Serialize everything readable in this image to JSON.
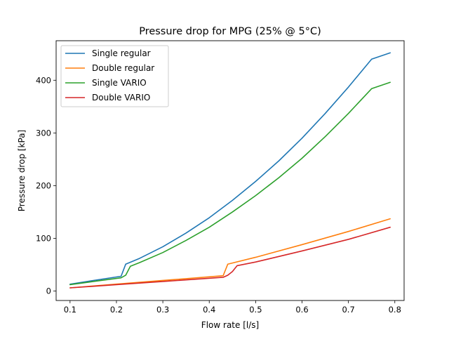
{
  "chart_data": {
    "type": "line",
    "title": "Pressure drop for MPG (25% @ 5°C)",
    "xlabel": "Flow rate [l/s]",
    "ylabel": "Pressure drop [kPa]",
    "xlim": [
      0.07,
      0.82
    ],
    "ylim": [
      -18,
      475
    ],
    "xticks": [
      0.1,
      0.2,
      0.3,
      0.4,
      0.5,
      0.6,
      0.7,
      0.8
    ],
    "xtick_labels": [
      "0.1",
      "0.2",
      "0.3",
      "0.4",
      "0.5",
      "0.6",
      "0.7",
      "0.8"
    ],
    "yticks": [
      0,
      100,
      200,
      300,
      400
    ],
    "ytick_labels": [
      "0",
      "100",
      "200",
      "300",
      "400"
    ],
    "grid": false,
    "legend_position": "top-left",
    "series": [
      {
        "name": "Single regular",
        "color": "#1f77b4",
        "x": [
          0.1,
          0.15,
          0.21,
          0.22,
          0.25,
          0.3,
          0.35,
          0.4,
          0.45,
          0.5,
          0.55,
          0.6,
          0.65,
          0.7,
          0.75,
          0.79
        ],
        "y": [
          13,
          20,
          28,
          51,
          62,
          84,
          110,
          139,
          172,
          208,
          247,
          290,
          337,
          387,
          440,
          452
        ]
      },
      {
        "name": "Double regular",
        "color": "#ff7f0e",
        "x": [
          0.1,
          0.2,
          0.3,
          0.43,
          0.44,
          0.5,
          0.6,
          0.7,
          0.79
        ],
        "y": [
          6,
          13,
          20,
          29,
          51,
          64,
          88,
          113,
          137
        ]
      },
      {
        "name": "Single VARIO",
        "color": "#2ca02c",
        "x": [
          0.1,
          0.15,
          0.21,
          0.22,
          0.23,
          0.25,
          0.3,
          0.35,
          0.4,
          0.45,
          0.5,
          0.55,
          0.6,
          0.65,
          0.7,
          0.75,
          0.79
        ],
        "y": [
          12,
          18,
          25,
          30,
          47,
          54,
          73,
          96,
          121,
          150,
          181,
          215,
          252,
          293,
          337,
          384,
          396
        ]
      },
      {
        "name": "Double VARIO",
        "color": "#d62728",
        "x": [
          0.1,
          0.2,
          0.3,
          0.43,
          0.44,
          0.45,
          0.46,
          0.5,
          0.6,
          0.7,
          0.79
        ],
        "y": [
          6,
          12,
          18,
          26,
          30,
          37,
          48,
          55,
          76,
          98,
          121
        ]
      }
    ]
  }
}
